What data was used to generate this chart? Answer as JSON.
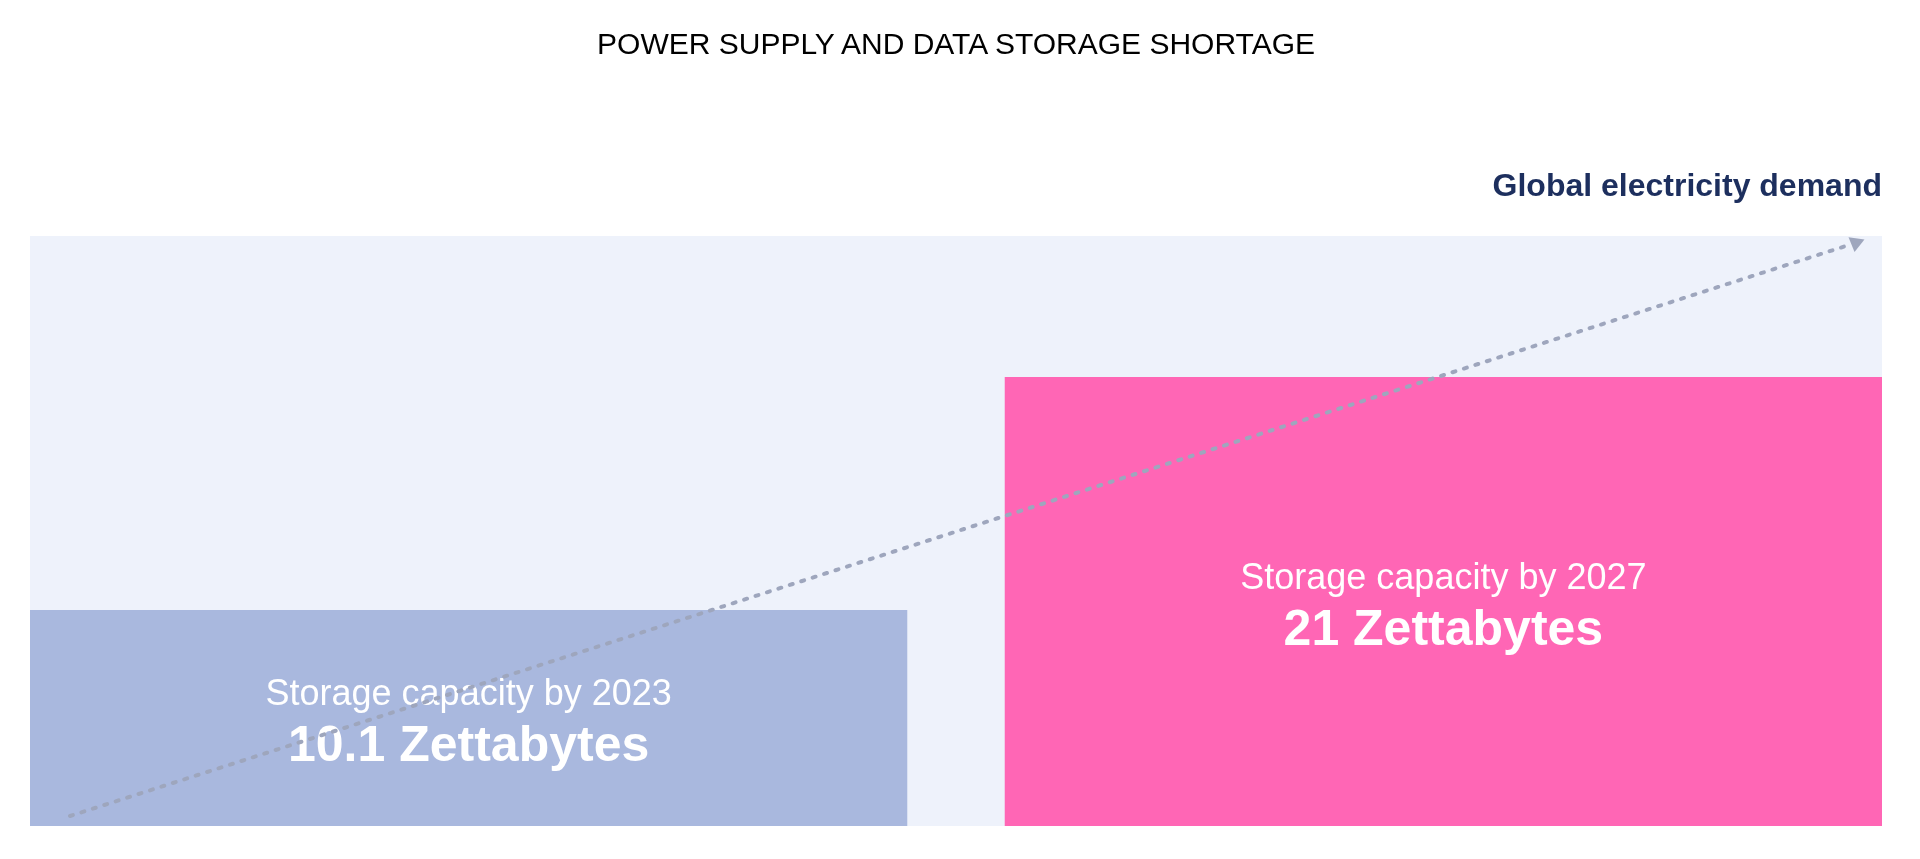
{
  "chart_data": {
    "type": "bar",
    "title": "POWER SUPPLY AND DATA STORAGE SHORTAGE",
    "categories": [
      "Storage capacity by 2023",
      "Storage capacity by 2027"
    ],
    "values": [
      10.1,
      21
    ],
    "colors": [
      "#a9b8de",
      "#ff66b5"
    ],
    "value_labels": [
      "10.1 Zettabytes",
      "21 Zettabytes"
    ],
    "ylim": [
      0,
      27.6
    ],
    "annotations": [
      "Global electricity demand"
    ]
  }
}
